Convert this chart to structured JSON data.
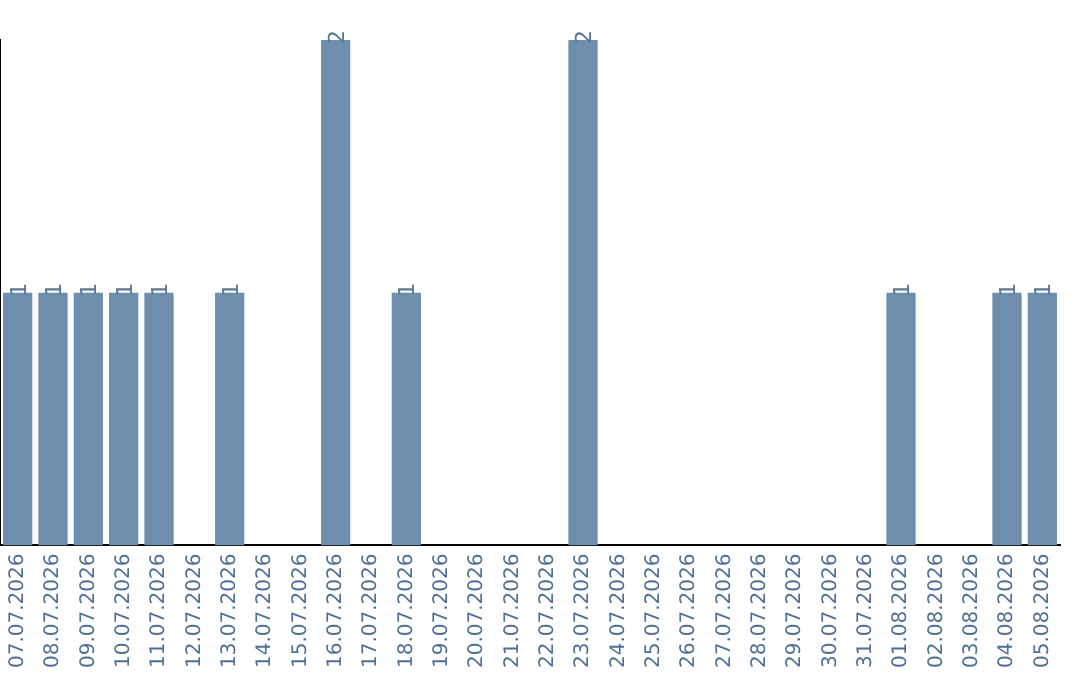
{
  "chart_data": {
    "type": "bar",
    "categories": [
      "07.07.2026",
      "08.07.2026",
      "09.07.2026",
      "10.07.2026",
      "11.07.2026",
      "12.07.2026",
      "13.07.2026",
      "14.07.2026",
      "15.07.2026",
      "16.07.2026",
      "17.07.2026",
      "18.07.2026",
      "19.07.2026",
      "20.07.2026",
      "21.07.2026",
      "22.07.2026",
      "23.07.2026",
      "24.07.2026",
      "25.07.2026",
      "26.07.2026",
      "27.07.2026",
      "28.07.2026",
      "29.07.2026",
      "30.07.2026",
      "31.07.2026",
      "01.08.2026",
      "02.08.2026",
      "03.08.2026",
      "04.08.2026",
      "05.08.2026"
    ],
    "values": [
      1,
      1,
      1,
      1,
      1,
      0,
      1,
      0,
      0,
      2,
      0,
      1,
      0,
      0,
      0,
      0,
      2,
      0,
      0,
      0,
      0,
      0,
      0,
      0,
      0,
      1,
      0,
      0,
      1,
      1
    ],
    "value_labels": [
      "1",
      "1",
      "1",
      "1",
      "1",
      null,
      "1",
      null,
      null,
      "2",
      null,
      "1",
      null,
      null,
      null,
      null,
      "2",
      null,
      null,
      null,
      null,
      null,
      null,
      null,
      null,
      "1",
      null,
      null,
      "1",
      "1"
    ],
    "color": "#6d8fad",
    "ylim": [
      0,
      2
    ],
    "tick_labels": "x"
  }
}
